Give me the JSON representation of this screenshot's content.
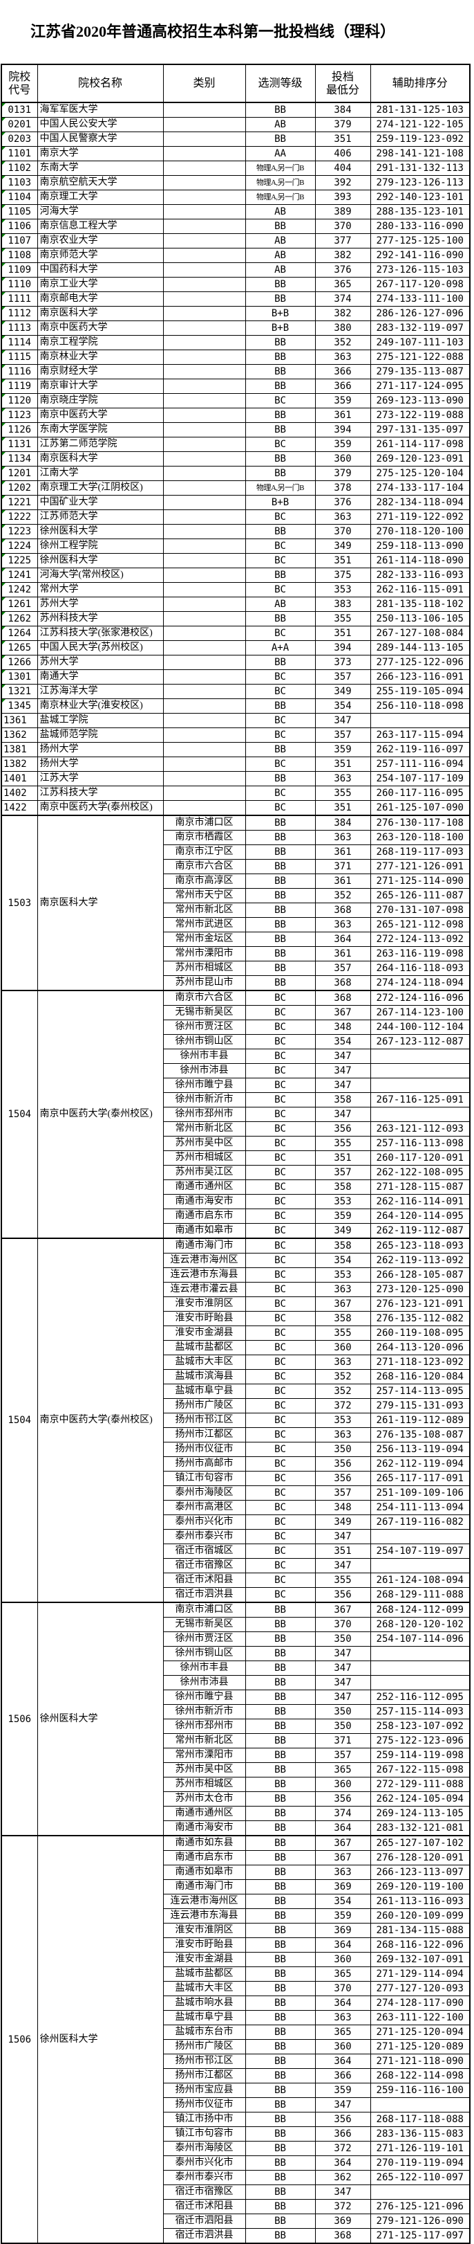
{
  "title": "江苏省2020年普通高校招生本科第一批投档线（理科）",
  "columns": [
    "院校|代号",
    "院校名称",
    "类别",
    "选测等级",
    "投档|最低分",
    "辅助排序分"
  ],
  "row_fields": [
    "code",
    "name",
    "grade",
    "score",
    "aux",
    "green_marker",
    "code_left_aligned"
  ],
  "group_row_fields": [
    "district",
    "grade",
    "score",
    "aux"
  ],
  "marker_color": "#008000",
  "simple_rows": [
    [
      "0131",
      "海军军医大学",
      "BB",
      "384",
      "281-131-125-103",
      1,
      0
    ],
    [
      "0201",
      "中国人民公安大学",
      "AB",
      "379",
      "274-121-122-105",
      1,
      0
    ],
    [
      "0203",
      "中国人民警察大学",
      "BB",
      "351",
      "259-119-123-092",
      1,
      0
    ],
    [
      "1101",
      "南京大学",
      "AA",
      "406",
      "298-141-121-108",
      1,
      0
    ],
    [
      "1102",
      "东南大学",
      "物理A,另一门B",
      "404",
      "291-131-132-113",
      1,
      0
    ],
    [
      "1103",
      "南京航空航天大学",
      "物理A,另一门B",
      "392",
      "279-123-126-113",
      1,
      0
    ],
    [
      "1104",
      "南京理工大学",
      "物理A,另一门B",
      "393",
      "292-140-123-101",
      1,
      0
    ],
    [
      "1105",
      "河海大学",
      "AB",
      "389",
      "288-135-123-101",
      1,
      0
    ],
    [
      "1106",
      "南京信息工程大学",
      "BB",
      "370",
      "280-133-116-090",
      1,
      0
    ],
    [
      "1107",
      "南京农业大学",
      "AB",
      "377",
      "277-125-125-100",
      1,
      0
    ],
    [
      "1108",
      "南京师范大学",
      "AB",
      "382",
      "292-141-116-090",
      1,
      0
    ],
    [
      "1109",
      "中国药科大学",
      "AB",
      "376",
      "273-126-115-103",
      1,
      0
    ],
    [
      "1110",
      "南京工业大学",
      "BB",
      "365",
      "267-117-120-098",
      1,
      0
    ],
    [
      "1111",
      "南京邮电大学",
      "BB",
      "374",
      "274-133-111-100",
      1,
      0
    ],
    [
      "1112",
      "南京医科大学",
      "B+B",
      "382",
      "286-126-127-096",
      1,
      0
    ],
    [
      "1113",
      "南京中医药大学",
      "B+B",
      "380",
      "283-132-119-097",
      1,
      0
    ],
    [
      "1114",
      "南京工程学院",
      "BB",
      "352",
      "249-107-111-103",
      1,
      0
    ],
    [
      "1115",
      "南京林业大学",
      "BB",
      "363",
      "275-121-122-088",
      1,
      0
    ],
    [
      "1116",
      "南京财经大学",
      "BB",
      "366",
      "279-135-113-087",
      1,
      0
    ],
    [
      "1119",
      "南京审计大学",
      "BB",
      "366",
      "271-117-124-095",
      1,
      0
    ],
    [
      "1120",
      "南京晓庄学院",
      "BC",
      "359",
      "269-123-113-090",
      1,
      0
    ],
    [
      "1123",
      "南京中医药大学",
      "BB",
      "361",
      "273-122-119-088",
      1,
      0
    ],
    [
      "1126",
      "东南大学医学院",
      "BB",
      "394",
      "297-131-135-097",
      1,
      0
    ],
    [
      "1131",
      "江苏第二师范学院",
      "BC",
      "359",
      "261-114-117-098",
      1,
      0
    ],
    [
      "1134",
      "南京医科大学",
      "BB",
      "360",
      "269-120-123-091",
      1,
      0
    ],
    [
      "1201",
      "江南大学",
      "BB",
      "379",
      "275-125-120-104",
      1,
      0
    ],
    [
      "1202",
      "南京理工大学(江阴校区)",
      "物理A,另一门B",
      "378",
      "274-133-117-104",
      1,
      0
    ],
    [
      "1221",
      "中国矿业大学",
      "B+B",
      "376",
      "282-134-118-094",
      1,
      0
    ],
    [
      "1222",
      "江苏师范大学",
      "BC",
      "363",
      "271-119-122-092",
      1,
      0
    ],
    [
      "1223",
      "徐州医科大学",
      "BB",
      "370",
      "270-118-120-100",
      1,
      0
    ],
    [
      "1224",
      "徐州工程学院",
      "BC",
      "349",
      "259-118-113-090",
      1,
      0
    ],
    [
      "1225",
      "徐州医科大学",
      "BC",
      "351",
      "261-114-118-090",
      1,
      0
    ],
    [
      "1241",
      "河海大学(常州校区)",
      "BB",
      "375",
      "282-133-116-093",
      1,
      0
    ],
    [
      "1242",
      "常州大学",
      "BC",
      "353",
      "262-116-115-091",
      1,
      0
    ],
    [
      "1261",
      "苏州大学",
      "AB",
      "383",
      "281-135-118-102",
      1,
      0
    ],
    [
      "1262",
      "苏州科技大学",
      "BB",
      "355",
      "250-113-106-105",
      1,
      0
    ],
    [
      "1264",
      "江苏科技大学(张家港校区)",
      "BC",
      "351",
      "267-127-108-084",
      1,
      0
    ],
    [
      "1265",
      "中国人民大学(苏州校区)",
      "A+A",
      "394",
      "289-144-113-105",
      1,
      0
    ],
    [
      "1266",
      "苏州大学",
      "BB",
      "373",
      "277-125-122-096",
      1,
      0
    ],
    [
      "1301",
      "南通大学",
      "BC",
      "357",
      "266-123-116-091",
      1,
      0
    ],
    [
      "1321",
      "江苏海洋大学",
      "BC",
      "349",
      "255-119-105-094",
      1,
      0
    ],
    [
      "1345",
      "南京林业大学(淮安校区)",
      "BB",
      "354",
      "256-110-118-098",
      1,
      0
    ],
    [
      "1361",
      "盐城工学院",
      "BC",
      "347",
      "",
      0,
      1
    ],
    [
      "1362",
      "盐城师范学院",
      "BC",
      "357",
      "263-117-115-094",
      0,
      1
    ],
    [
      "1381",
      "扬州大学",
      "BB",
      "359",
      "262-119-116-097",
      0,
      1
    ],
    [
      "1382",
      "扬州大学",
      "BC",
      "351",
      "257-111-116-094",
      0,
      1
    ],
    [
      "1401",
      "江苏大学",
      "BB",
      "363",
      "254-107-117-109",
      0,
      1
    ],
    [
      "1402",
      "江苏科技大学",
      "BC",
      "355",
      "260-117-116-095",
      0,
      1
    ],
    [
      "1422",
      "南京中医药大学(泰州校区)",
      "BC",
      "351",
      "261-125-107-090",
      0,
      1
    ]
  ],
  "groups": [
    {
      "code": "1503",
      "name": "南京医科大学",
      "rows": [
        [
          "南京市浦口区",
          "BB",
          "384",
          "276-130-117-108"
        ],
        [
          "南京市栖霞区",
          "BB",
          "363",
          "263-120-118-100"
        ],
        [
          "南京市江宁区",
          "BB",
          "361",
          "268-119-117-093"
        ],
        [
          "南京市六合区",
          "BB",
          "371",
          "277-121-126-091"
        ],
        [
          "南京市高淳区",
          "BB",
          "361",
          "271-125-114-090"
        ],
        [
          "常州市天宁区",
          "BB",
          "352",
          "265-126-111-087"
        ],
        [
          "常州市新北区",
          "BB",
          "368",
          "270-131-107-098"
        ],
        [
          "常州市武进区",
          "BB",
          "363",
          "265-121-112-098"
        ],
        [
          "常州市金坛区",
          "BB",
          "364",
          "272-124-113-092"
        ],
        [
          "常州市溧阳市",
          "BB",
          "361",
          "263-116-119-098"
        ],
        [
          "苏州市相城区",
          "BB",
          "357",
          "264-116-118-093"
        ],
        [
          "苏州市昆山市",
          "BB",
          "368",
          "274-124-118-094"
        ]
      ]
    },
    {
      "code": "1504",
      "name": "南京中医药大学(泰州校区)",
      "rows": [
        [
          "南京市六合区",
          "BC",
          "368",
          "272-124-116-096"
        ],
        [
          "无锡市新吴区",
          "BC",
          "367",
          "267-114-123-100"
        ],
        [
          "徐州市贾汪区",
          "BC",
          "348",
          "244-100-112-104"
        ],
        [
          "徐州市铜山区",
          "BC",
          "354",
          "267-123-112-087"
        ],
        [
          "徐州市丰县",
          "BC",
          "347",
          ""
        ],
        [
          "徐州市沛县",
          "BC",
          "347",
          ""
        ],
        [
          "徐州市睢宁县",
          "BC",
          "347",
          ""
        ],
        [
          "徐州市新沂市",
          "BC",
          "358",
          "267-116-125-091"
        ],
        [
          "徐州市邳州市",
          "BC",
          "347",
          ""
        ],
        [
          "常州市新北区",
          "BC",
          "356",
          "263-121-112-093"
        ],
        [
          "苏州市吴中区",
          "BC",
          "355",
          "257-116-113-098"
        ],
        [
          "苏州市相城区",
          "BC",
          "351",
          "260-117-120-091"
        ],
        [
          "苏州市吴江区",
          "BC",
          "357",
          "262-122-108-095"
        ],
        [
          "南通市通州区",
          "BC",
          "358",
          "271-128-115-087"
        ],
        [
          "南通市海安市",
          "BC",
          "353",
          "262-116-114-091"
        ],
        [
          "南通市启东市",
          "BC",
          "359",
          "264-120-114-095"
        ],
        [
          "南通市如皋市",
          "BC",
          "349",
          "262-119-112-087"
        ]
      ]
    },
    {
      "code": "1504",
      "name": "南京中医药大学(泰州校区)",
      "rows": [
        [
          "南通市海门市",
          "BC",
          "358",
          "265-123-118-093"
        ],
        [
          "连云港市海州区",
          "BC",
          "354",
          "262-119-113-092"
        ],
        [
          "连云港市东海县",
          "BC",
          "353",
          "266-128-105-087"
        ],
        [
          "连云港市灌云县",
          "BC",
          "363",
          "273-120-125-090"
        ],
        [
          "淮安市淮阴区",
          "BC",
          "367",
          "276-123-121-091"
        ],
        [
          "淮安市盱眙县",
          "BC",
          "358",
          "276-135-112-082"
        ],
        [
          "淮安市金湖县",
          "BC",
          "355",
          "260-119-108-095"
        ],
        [
          "盐城市盐都区",
          "BC",
          "360",
          "264-113-120-096"
        ],
        [
          "盐城市大丰区",
          "BC",
          "363",
          "271-118-123-092"
        ],
        [
          "盐城市滨海县",
          "BC",
          "352",
          "268-116-120-084"
        ],
        [
          "盐城市阜宁县",
          "BC",
          "352",
          "257-114-113-095"
        ],
        [
          "扬州市广陵区",
          "BC",
          "372",
          "279-115-131-093"
        ],
        [
          "扬州市邗江区",
          "BC",
          "353",
          "261-119-112-089"
        ],
        [
          "扬州市江都区",
          "BC",
          "363",
          "276-135-108-087"
        ],
        [
          "扬州市仪征市",
          "BC",
          "350",
          "256-113-119-094"
        ],
        [
          "扬州市高邮市",
          "BC",
          "356",
          "262-112-119-094"
        ],
        [
          "镇江市句容市",
          "BC",
          "356",
          "265-117-117-091"
        ],
        [
          "泰州市海陵区",
          "BC",
          "357",
          "251-109-109-106"
        ],
        [
          "泰州市高港区",
          "BC",
          "348",
          "254-111-113-094"
        ],
        [
          "泰州市兴化市",
          "BC",
          "349",
          "267-119-116-082"
        ],
        [
          "泰州市泰兴市",
          "BC",
          "347",
          ""
        ],
        [
          "宿迁市宿城区",
          "BC",
          "351",
          "254-107-119-097"
        ],
        [
          "宿迁市宿豫区",
          "BC",
          "347",
          ""
        ],
        [
          "宿迁市沭阳县",
          "BC",
          "355",
          "261-124-108-094"
        ],
        [
          "宿迁市泗洪县",
          "BC",
          "356",
          "268-129-111-088"
        ]
      ]
    },
    {
      "code": "1506",
      "name": "徐州医科大学",
      "rows": [
        [
          "南京市浦口区",
          "BB",
          "367",
          "268-124-112-099"
        ],
        [
          "无锡市新吴区",
          "BB",
          "370",
          "268-120-120-102"
        ],
        [
          "徐州市贾汪区",
          "BB",
          "350",
          "254-107-114-096"
        ],
        [
          "徐州市铜山区",
          "BB",
          "347",
          ""
        ],
        [
          "徐州市丰县",
          "BB",
          "347",
          ""
        ],
        [
          "徐州市沛县",
          "BB",
          "347",
          ""
        ],
        [
          "徐州市睢宁县",
          "BB",
          "347",
          "252-116-112-095"
        ],
        [
          "徐州市新沂市",
          "BB",
          "350",
          "257-115-114-093"
        ],
        [
          "徐州市邳州市",
          "BB",
          "350",
          "258-123-107-092"
        ],
        [
          "常州市新北区",
          "BB",
          "371",
          "275-122-123-096"
        ],
        [
          "常州市溧阳市",
          "BB",
          "357",
          "259-114-119-098"
        ],
        [
          "苏州市吴中区",
          "BB",
          "365",
          "267-122-115-098"
        ],
        [
          "苏州市相城区",
          "BB",
          "360",
          "272-129-111-088"
        ],
        [
          "苏州市太仓市",
          "BB",
          "356",
          "262-124-105-094"
        ],
        [
          "南通市通州区",
          "BB",
          "374",
          "269-124-113-105"
        ],
        [
          "南通市海安市",
          "BB",
          "364",
          "283-132-121-081"
        ]
      ]
    },
    {
      "code": "1506",
      "name": "徐州医科大学",
      "rows": [
        [
          "南通市如东县",
          "BB",
          "367",
          "265-127-107-102"
        ],
        [
          "南通市启东市",
          "BB",
          "367",
          "276-128-120-091"
        ],
        [
          "南通市如皋市",
          "BB",
          "363",
          "266-123-113-097"
        ],
        [
          "南通市海门市",
          "BB",
          "369",
          "269-120-119-100"
        ],
        [
          "连云港市海州区",
          "BB",
          "354",
          "261-113-116-093"
        ],
        [
          "连云港市东海县",
          "BB",
          "359",
          "260-120-109-099"
        ],
        [
          "淮安市淮阴区",
          "BB",
          "369",
          "281-134-115-088"
        ],
        [
          "淮安市盱眙县",
          "BB",
          "364",
          "268-116-122-096"
        ],
        [
          "淮安市金湖县",
          "BB",
          "360",
          "269-132-107-091"
        ],
        [
          "盐城市盐都区",
          "BB",
          "365",
          "271-129-114-094"
        ],
        [
          "盐城市大丰区",
          "BB",
          "370",
          "277-127-120-093"
        ],
        [
          "盐城市响水县",
          "BB",
          "364",
          "274-128-117-090"
        ],
        [
          "盐城市阜宁县",
          "BB",
          "363",
          "263-111-122-100"
        ],
        [
          "盐城市东台市",
          "BB",
          "365",
          "271-125-120-094"
        ],
        [
          "扬州市广陵区",
          "BB",
          "360",
          "271-125-120-089"
        ],
        [
          "扬州市邗江区",
          "BB",
          "364",
          "271-121-118-090"
        ],
        [
          "扬州市江都区",
          "BB",
          "366",
          "268-122-114-098"
        ],
        [
          "扬州市宝应县",
          "BB",
          "359",
          "259-116-116-100"
        ],
        [
          "扬州市仪征市",
          "BB",
          "347",
          ""
        ],
        [
          "镇江市扬中市",
          "BB",
          "356",
          "268-117-118-088"
        ],
        [
          "镇江市句容市",
          "BB",
          "366",
          "283-136-115-083"
        ],
        [
          "泰州市海陵区",
          "BB",
          "372",
          "271-126-119-101"
        ],
        [
          "泰州市兴化市",
          "BB",
          "364",
          "270-119-119-094"
        ],
        [
          "泰州市泰兴市",
          "BB",
          "362",
          "265-122-110-097"
        ],
        [
          "宿迁市宿豫区",
          "BB",
          "347",
          ""
        ],
        [
          "宿迁市沭阳县",
          "BB",
          "372",
          "276-125-121-096"
        ],
        [
          "宿迁市泗阳县",
          "BB",
          "369",
          "279-121-126-090"
        ],
        [
          "宿迁市泗洪县",
          "BB",
          "368",
          "271-125-117-097"
        ]
      ]
    }
  ]
}
